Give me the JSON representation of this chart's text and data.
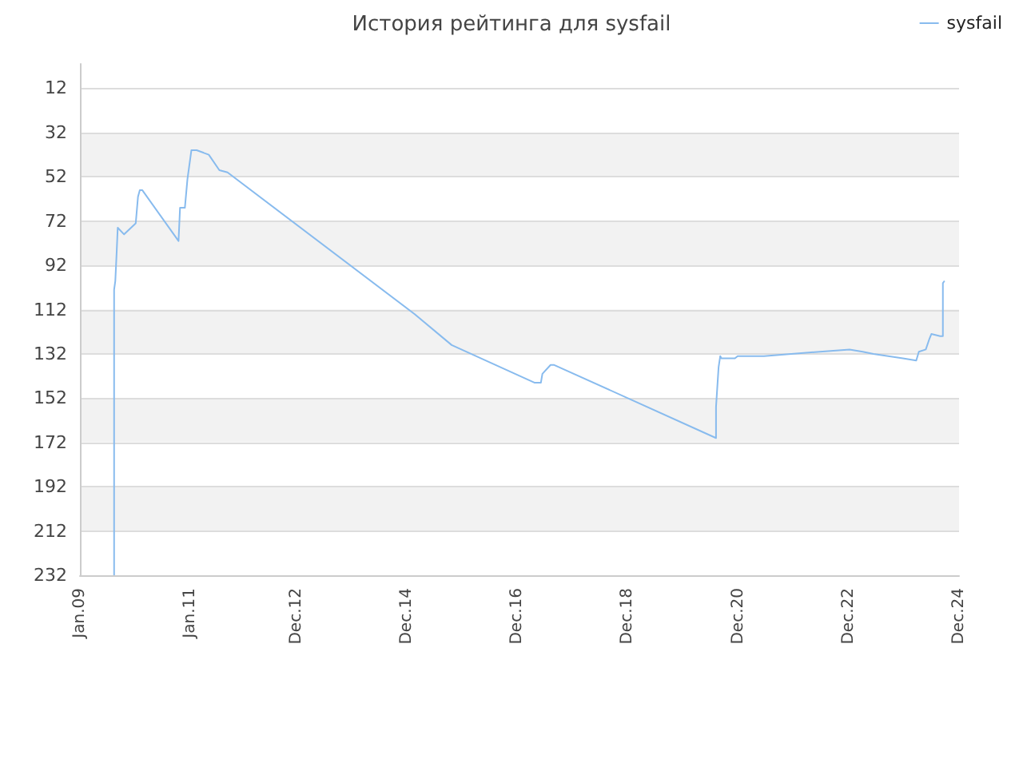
{
  "chart_data": {
    "type": "line",
    "title": "История рейтинга для sysfail",
    "series": [
      {
        "name": "sysfail",
        "color": "#88bbee",
        "x": [
          "2009-08-15",
          "2009-08-15",
          "2009-08-23",
          "2009-09-01",
          "2009-09-08",
          "2009-10-20",
          "2010-01-05",
          "2010-01-20",
          "2010-02-01",
          "2010-02-17",
          "2010-10-15",
          "2010-10-25",
          "2010-11-26",
          "2010-12-13",
          "2011-01-08",
          "2011-02-12",
          "2011-05-03",
          "2011-07-12",
          "2011-09-04",
          "2015-01-22",
          "2015-09-25",
          "2017-03-25",
          "2017-05-07",
          "2017-05-17",
          "2017-07-10",
          "2017-08-03",
          "2020-07-08",
          "2020-07-08",
          "2020-07-25",
          "2020-08-05",
          "2020-08-13",
          "2020-11-10",
          "2020-11-28",
          "2021-05-21",
          "2022-05-26",
          "2022-12-08",
          "2023-03-05",
          "2023-05-15",
          "2023-11-26",
          "2024-02-22",
          "2024-03-10",
          "2024-04-25",
          "2024-05-20",
          "2024-06-01",
          "2024-07-29",
          "2024-08-16",
          "2024-08-16",
          "2024-08-27"
        ],
        "values": [
          232,
          103,
          99,
          86,
          75,
          78,
          73,
          61,
          58,
          58,
          81,
          66,
          66,
          53,
          40,
          40,
          42,
          49,
          50,
          114,
          128,
          145,
          145,
          141,
          137,
          137,
          170,
          156,
          138,
          133,
          134,
          134,
          133,
          133,
          131,
          130,
          131,
          132,
          134,
          135,
          131,
          130,
          125,
          123,
          124,
          124,
          100,
          99
        ]
      }
    ],
    "xlim": [
      "2009-01-01",
      "2024-12-01"
    ],
    "xticks": [
      {
        "value": "2009-01-01",
        "label": "Jan.09"
      },
      {
        "value": "2011-01-01",
        "label": "Jan.11"
      },
      {
        "value": "2012-12-01",
        "label": "Dec.12"
      },
      {
        "value": "2014-12-01",
        "label": "Dec.14"
      },
      {
        "value": "2016-12-01",
        "label": "Dec.16"
      },
      {
        "value": "2018-12-01",
        "label": "Dec.18"
      },
      {
        "value": "2020-12-01",
        "label": "Dec.20"
      },
      {
        "value": "2022-12-01",
        "label": "Dec.22"
      },
      {
        "value": "2024-12-01",
        "label": "Dec.24"
      }
    ],
    "ylim": [
      232,
      1
    ],
    "yticks": [
      12,
      32,
      52,
      72,
      92,
      112,
      132,
      152,
      172,
      192,
      212,
      232
    ],
    "grid": "y",
    "legend": "top right",
    "marker": "none",
    "line_style": "solid"
  }
}
